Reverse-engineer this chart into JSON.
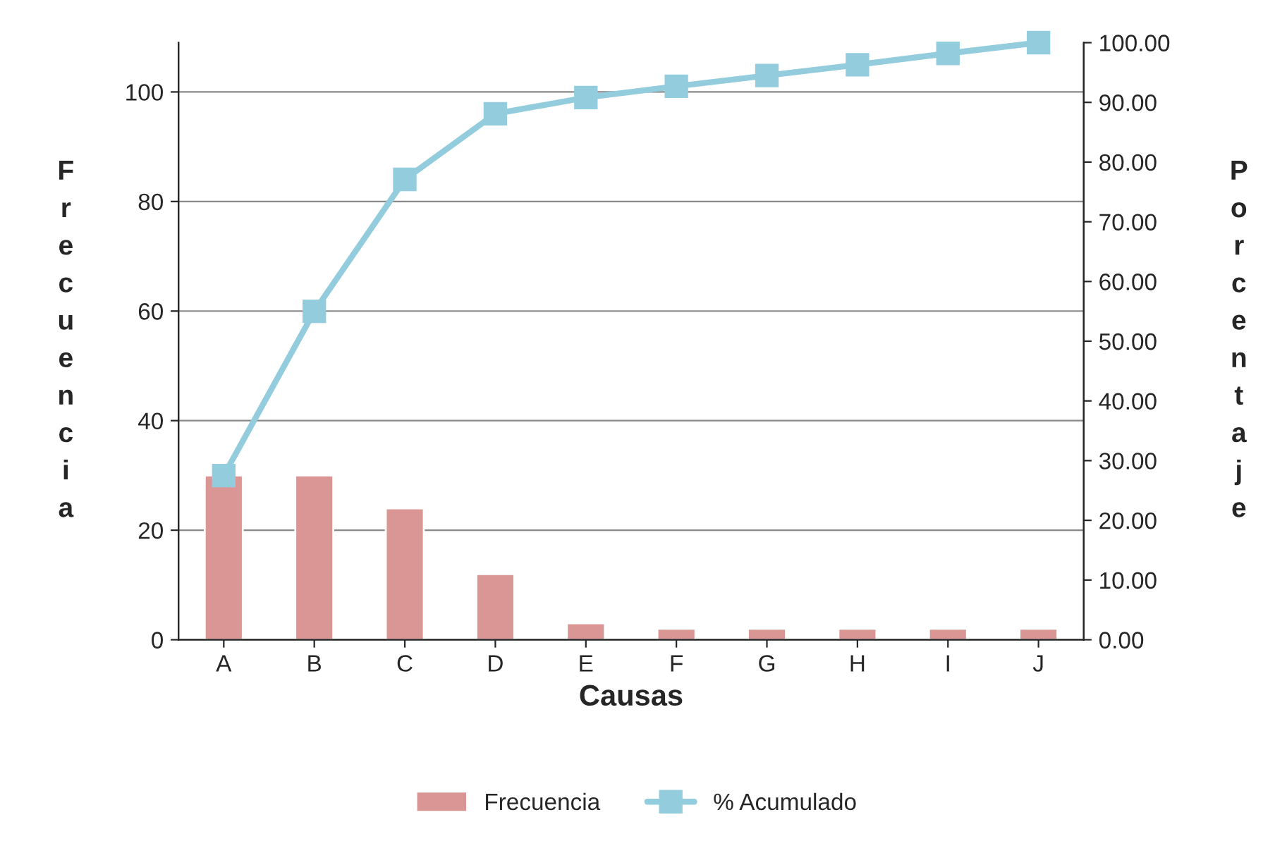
{
  "chart_data": {
    "type": "bar",
    "xlabel": "Causas",
    "ylabel": "Frecuencia",
    "y2label": "Porcentaje",
    "categories": [
      "A",
      "B",
      "C",
      "D",
      "E",
      "F",
      "G",
      "H",
      "I",
      "J"
    ],
    "series": [
      {
        "name": "Frecuencia",
        "color": "#d99694",
        "values": [
          30,
          30,
          24,
          12,
          3,
          2,
          2,
          2,
          2,
          2
        ]
      },
      {
        "name": "% Acumulado",
        "type": "line",
        "axis": "y2",
        "color": "#93cddd",
        "marker": "square",
        "line_style": "solid",
        "values": [
          27.5,
          55.0,
          77.1,
          88.1,
          90.8,
          92.7,
          94.5,
          96.3,
          98.2,
          100.0
        ]
      }
    ],
    "ylim": [
      0,
      109
    ],
    "yticks": [
      0,
      20,
      40,
      60,
      80,
      100
    ],
    "y2lim": [
      0,
      100
    ],
    "y2ticks": [
      {
        "value": 0,
        "label": "0.00"
      },
      {
        "value": 10,
        "label": "10.00"
      },
      {
        "value": 20,
        "label": "20.00"
      },
      {
        "value": 30,
        "label": "30.00"
      },
      {
        "value": 40,
        "label": "40.00"
      },
      {
        "value": 50,
        "label": "50.00"
      },
      {
        "value": 60,
        "label": "60.00"
      },
      {
        "value": 70,
        "label": "70.00"
      },
      {
        "value": 80,
        "label": "80.00"
      },
      {
        "value": 90,
        "label": "90.00"
      },
      {
        "value": 100,
        "label": "100.00"
      }
    ],
    "grid": "y",
    "legend": "bottom"
  }
}
